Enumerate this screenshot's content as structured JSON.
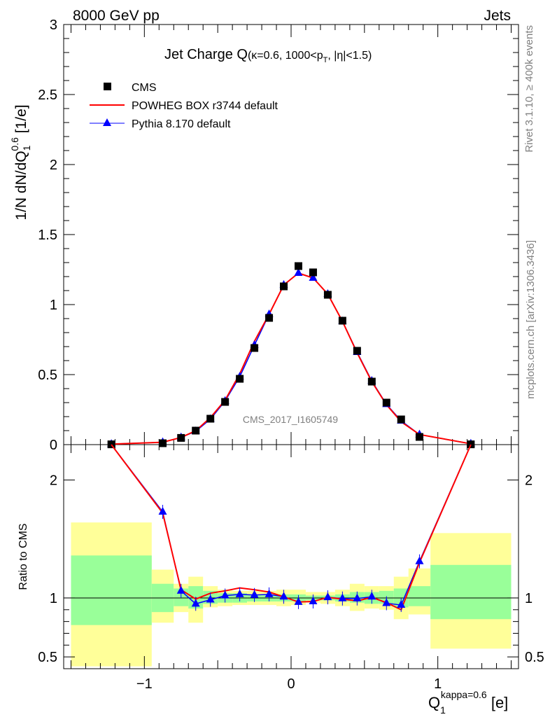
{
  "header": {
    "left": "8000 GeV pp",
    "right": "Jets"
  },
  "title": {
    "main": "Jet Charge Q",
    "sub": "(κ=0.6, 1000<p",
    "sub_subscript": "T",
    "sub_tail": ", |η|<1.5)"
  },
  "side_labels": {
    "rivet": "Rivet 3.1.10, ≥ 400k events",
    "mcplots": "mcplots.cern.ch [arXiv:1306.3436]"
  },
  "analysis_id": "CMS_2017_I1605749",
  "ylabel_main": {
    "prefix": "1/N dN/dQ",
    "superscript": "0.6",
    "subscript": "1",
    "suffix": " [1/e]"
  },
  "ylabel_ratio": "Ratio to CMS",
  "xlabel": {
    "base": "Q",
    "superscript": "kappa=0.6",
    "subscript": "1",
    "suffix": " [e]"
  },
  "legend": [
    {
      "name": "CMS",
      "marker": "square",
      "color": "#000000"
    },
    {
      "name": "POWHEG BOX r3744 default",
      "marker": "line",
      "color": "#ff0000"
    },
    {
      "name": "Pythia 8.170 default",
      "marker": "triangle",
      "color": "#0000ff"
    }
  ],
  "chart_data": {
    "type": "scatter",
    "xlim": [
      -1.55,
      1.55
    ],
    "ylim_main": [
      0,
      3
    ],
    "ylim_ratio": [
      0.4,
      2.3
    ],
    "yticks_main": [
      "0",
      "0.5",
      "1",
      "1.5",
      "2",
      "2.5",
      "3"
    ],
    "yticks_ratio": [
      "0.5",
      "1",
      "2"
    ],
    "xticks": [
      "−1",
      "0",
      "1"
    ],
    "legend_position": "top-left",
    "bins": [
      -1.5,
      -0.95,
      -0.8,
      -0.7,
      -0.6,
      -0.5,
      -0.4,
      -0.3,
      -0.2,
      -0.1,
      0.0,
      0.1,
      0.2,
      0.3,
      0.4,
      0.5,
      0.6,
      0.7,
      0.8,
      0.95,
      1.5
    ],
    "series": [
      {
        "name": "CMS",
        "x": [
          -1.225,
          -0.875,
          -0.75,
          -0.65,
          -0.55,
          -0.45,
          -0.35,
          -0.25,
          -0.15,
          -0.05,
          0.05,
          0.15,
          0.25,
          0.35,
          0.45,
          0.55,
          0.65,
          0.75,
          0.875,
          1.225
        ],
        "y": [
          0.002,
          0.01,
          0.048,
          0.1,
          0.185,
          0.305,
          0.47,
          0.69,
          0.905,
          1.13,
          1.275,
          1.23,
          1.07,
          0.885,
          0.67,
          0.45,
          0.3,
          0.18,
          0.055,
          0.002
        ]
      },
      {
        "name": "POWHEG BOX r3744 default",
        "x": [
          -1.225,
          -0.875,
          -0.75,
          -0.65,
          -0.55,
          -0.45,
          -0.35,
          -0.25,
          -0.15,
          -0.05,
          0.05,
          0.15,
          0.25,
          0.35,
          0.45,
          0.55,
          0.65,
          0.75,
          0.875,
          1.225
        ],
        "y": [
          0.004,
          0.017,
          0.051,
          0.099,
          0.193,
          0.317,
          0.505,
          0.738,
          0.93,
          1.14,
          1.225,
          1.19,
          1.075,
          0.88,
          0.655,
          0.45,
          0.285,
          0.163,
          0.072,
          0.006
        ]
      },
      {
        "name": "Pythia 8.170 default",
        "x": [
          -1.225,
          -0.875,
          -0.75,
          -0.65,
          -0.55,
          -0.45,
          -0.35,
          -0.25,
          -0.15,
          -0.05,
          0.05,
          0.15,
          0.25,
          0.35,
          0.45,
          0.55,
          0.65,
          0.75,
          0.875,
          1.225
        ],
        "y": [
          0.004,
          0.017,
          0.051,
          0.095,
          0.182,
          0.311,
          0.485,
          0.71,
          0.93,
          1.14,
          1.225,
          1.19,
          1.075,
          0.88,
          0.66,
          0.455,
          0.288,
          0.17,
          0.072,
          0.006
        ]
      }
    ],
    "ratio_series": [
      {
        "name": "POWHEG BOX r3744 default",
        "x": [
          -0.875,
          -0.75,
          -0.65,
          -0.55,
          -0.45,
          -0.35,
          -0.25,
          -0.15,
          -0.05,
          0.05,
          0.15,
          0.25,
          0.35,
          0.45,
          0.55,
          0.65,
          0.75,
          0.875
        ],
        "y": [
          1.72,
          1.07,
          0.99,
          1.04,
          1.06,
          1.085,
          1.07,
          1.05,
          1.01,
          0.965,
          0.97,
          1.005,
          0.99,
          0.975,
          1.005,
          0.96,
          0.9,
          1.3
        ]
      },
      {
        "name": "Pythia 8.170 default",
        "x": [
          -0.875,
          -0.75,
          -0.65,
          -0.55,
          -0.45,
          -0.35,
          -0.25,
          -0.15,
          -0.05,
          0.05,
          0.15,
          0.25,
          0.35,
          0.45,
          0.55,
          0.65,
          0.75,
          0.875
        ],
        "y": [
          1.73,
          1.06,
          0.95,
          0.985,
          1.02,
          1.03,
          1.025,
          1.03,
          1.01,
          0.965,
          0.97,
          1.005,
          0.995,
          0.995,
          1.01,
          0.955,
          0.94,
          1.31
        ]
      }
    ],
    "ratio_band_inner": [
      [
        0.77,
        1.36
      ],
      [
        0.88,
        1.12
      ],
      [
        0.93,
        1.08
      ],
      [
        0.91,
        1.1
      ],
      [
        0.95,
        1.06
      ],
      [
        0.96,
        1.04
      ],
      [
        0.96,
        1.04
      ],
      [
        0.97,
        1.03
      ],
      [
        0.97,
        1.03
      ],
      [
        0.97,
        1.03
      ],
      [
        0.97,
        1.03
      ],
      [
        0.98,
        1.02
      ],
      [
        0.98,
        1.02
      ],
      [
        0.97,
        1.03
      ],
      [
        0.96,
        1.05
      ],
      [
        0.95,
        1.05
      ],
      [
        0.95,
        1.06
      ],
      [
        0.92,
        1.08
      ],
      [
        0.93,
        1.1
      ],
      [
        0.82,
        1.28
      ]
    ],
    "ratio_band_outer": [
      [
        0.42,
        1.64
      ],
      [
        0.79,
        1.24
      ],
      [
        0.88,
        1.12
      ],
      [
        0.79,
        1.18
      ],
      [
        0.92,
        1.1
      ],
      [
        0.93,
        1.07
      ],
      [
        0.94,
        1.06
      ],
      [
        0.94,
        1.06
      ],
      [
        0.94,
        1.06
      ],
      [
        0.93,
        1.07
      ],
      [
        0.94,
        1.07
      ],
      [
        0.96,
        1.05
      ],
      [
        0.95,
        1.05
      ],
      [
        0.93,
        1.07
      ],
      [
        0.89,
        1.12
      ],
      [
        0.91,
        1.1
      ],
      [
        0.9,
        1.1
      ],
      [
        0.82,
        1.18
      ],
      [
        0.86,
        1.25
      ],
      [
        0.57,
        1.55
      ]
    ]
  }
}
